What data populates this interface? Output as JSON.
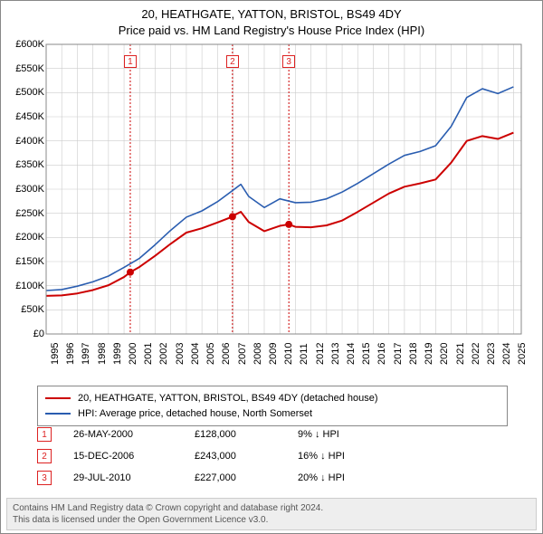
{
  "title_line1": "20, HEATHGATE, YATTON, BRISTOL, BS49 4DY",
  "title_line2": "Price paid vs. HM Land Registry's House Price Index (HPI)",
  "chart": {
    "type": "line",
    "xlim": [
      1995,
      2025.5
    ],
    "ylim": [
      0,
      600
    ],
    "ytick_step": 50,
    "y_labels": [
      "£0",
      "£50K",
      "£100K",
      "£150K",
      "£200K",
      "£250K",
      "£300K",
      "£350K",
      "£400K",
      "£450K",
      "£500K",
      "£550K",
      "£600K"
    ],
    "x_years": [
      1995,
      1996,
      1997,
      1998,
      1999,
      2000,
      2001,
      2002,
      2003,
      2004,
      2005,
      2006,
      2007,
      2008,
      2009,
      2010,
      2011,
      2012,
      2013,
      2014,
      2015,
      2016,
      2017,
      2018,
      2019,
      2020,
      2021,
      2022,
      2023,
      2024,
      2025
    ],
    "background_color": "#ffffff",
    "grid_color": "#cccccc",
    "series": [
      {
        "name": "prop",
        "color": "#cc0000",
        "width": 2,
        "points": [
          [
            1995,
            79
          ],
          [
            1996,
            80
          ],
          [
            1997,
            84
          ],
          [
            1998,
            91
          ],
          [
            1999,
            101
          ],
          [
            2000,
            118
          ],
          [
            2000.4,
            128
          ],
          [
            2001,
            139
          ],
          [
            2002,
            162
          ],
          [
            2003,
            187
          ],
          [
            2004,
            210
          ],
          [
            2005,
            219
          ],
          [
            2006,
            231
          ],
          [
            2006.96,
            243
          ],
          [
            2007,
            245
          ],
          [
            2007.5,
            253
          ],
          [
            2008,
            232
          ],
          [
            2009,
            213
          ],
          [
            2010,
            224
          ],
          [
            2010.58,
            227
          ],
          [
            2011,
            222
          ],
          [
            2012,
            221
          ],
          [
            2013,
            225
          ],
          [
            2014,
            235
          ],
          [
            2015,
            253
          ],
          [
            2016,
            272
          ],
          [
            2017,
            291
          ],
          [
            2018,
            305
          ],
          [
            2019,
            312
          ],
          [
            2020,
            320
          ],
          [
            2021,
            355
          ],
          [
            2022,
            400
          ],
          [
            2023,
            410
          ],
          [
            2024,
            404
          ],
          [
            2025,
            417
          ]
        ]
      },
      {
        "name": "hpi",
        "color": "#2a5db0",
        "width": 1.6,
        "points": [
          [
            1995,
            90
          ],
          [
            1996,
            92
          ],
          [
            1997,
            99
          ],
          [
            1998,
            108
          ],
          [
            1999,
            120
          ],
          [
            2000,
            138
          ],
          [
            2001,
            157
          ],
          [
            2002,
            185
          ],
          [
            2003,
            215
          ],
          [
            2004,
            242
          ],
          [
            2005,
            255
          ],
          [
            2006,
            274
          ],
          [
            2007,
            298
          ],
          [
            2007.5,
            310
          ],
          [
            2008,
            285
          ],
          [
            2009,
            262
          ],
          [
            2010,
            280
          ],
          [
            2011,
            272
          ],
          [
            2012,
            273
          ],
          [
            2013,
            280
          ],
          [
            2014,
            294
          ],
          [
            2015,
            312
          ],
          [
            2016,
            332
          ],
          [
            2017,
            352
          ],
          [
            2018,
            370
          ],
          [
            2019,
            378
          ],
          [
            2020,
            390
          ],
          [
            2021,
            430
          ],
          [
            2022,
            490
          ],
          [
            2023,
            508
          ],
          [
            2024,
            498
          ],
          [
            2025,
            512
          ]
        ]
      }
    ],
    "markers": [
      {
        "n": "1",
        "x": 2000.4,
        "y": 128,
        "dot": true
      },
      {
        "n": "2",
        "x": 2006.96,
        "y": 243,
        "dot": true
      },
      {
        "n": "3",
        "x": 2010.58,
        "y": 227,
        "dot": true
      }
    ],
    "marker_box_color": "#cc0000",
    "marker_dot_color": "#cc0000",
    "marker_vline_color": "#cc0000"
  },
  "legend": {
    "items": [
      {
        "color": "#cc0000",
        "label": "20, HEATHGATE, YATTON, BRISTOL, BS49 4DY (detached house)"
      },
      {
        "color": "#2a5db0",
        "label": "HPI: Average price, detached house, North Somerset"
      }
    ]
  },
  "events": [
    {
      "n": "1",
      "date": "26-MAY-2000",
      "price": "£128,000",
      "diff": "9% ↓ HPI"
    },
    {
      "n": "2",
      "date": "15-DEC-2006",
      "price": "£243,000",
      "diff": "16% ↓ HPI"
    },
    {
      "n": "3",
      "date": "29-JUL-2010",
      "price": "£227,000",
      "diff": "20% ↓ HPI"
    }
  ],
  "footer": {
    "line1": "Contains HM Land Registry data © Crown copyright and database right 2024.",
    "line2": "This data is licensed under the Open Government Licence v3.0."
  }
}
